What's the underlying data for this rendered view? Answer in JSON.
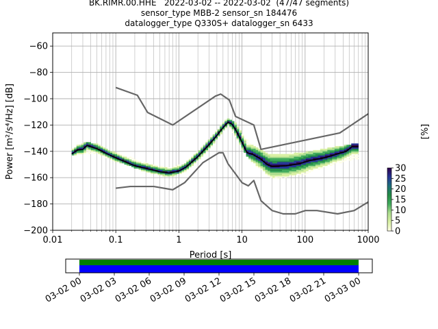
{
  "chart_data": {
    "type": "heatmap",
    "title_lines": [
      "BK.RIMR.00.HHE   2022-03-02 -- 2022-03-02  (47/47 segments)",
      "sensor_type MBB-2 sensor_sn 184476",
      "datalogger_type Q330S+ datalogger_sn 6433"
    ],
    "xlabel": "Period [s]",
    "ylabel": "Power [m²/s⁴/Hz] [dB]",
    "xscale": "log",
    "xlim": [
      0.01,
      1000
    ],
    "ylim": [
      -200,
      -50
    ],
    "x_ticks": [
      0.01,
      0.1,
      1,
      10,
      100,
      1000
    ],
    "x_tick_labels": [
      "0.01",
      "0.1",
      "1",
      "10",
      "100",
      "1000"
    ],
    "y_ticks": [
      -200,
      -180,
      -160,
      -140,
      -120,
      -100,
      -80,
      -60
    ],
    "y_tick_labels": [
      "−200",
      "−180",
      "−160",
      "−140",
      "−120",
      "−100",
      "−80",
      "−60"
    ],
    "grid": true,
    "colorbar": {
      "label": "[%]",
      "range": [
        0,
        30
      ],
      "ticks": [
        0,
        5,
        10,
        15,
        20,
        25,
        30
      ],
      "tick_labels": [
        "0",
        "5",
        "10",
        "15",
        "20",
        "25",
        "30"
      ],
      "colors": [
        "#ffffe5",
        "#d9f0a3",
        "#addd8e",
        "#41ab5d",
        "#238b45",
        "#1d6f7a",
        "#253494",
        "#2d004b"
      ]
    },
    "series": [
      {
        "name": "",
        "role": "new_high_noise_model",
        "color": "#666666",
        "points": [
          [
            0.1,
            -91.5
          ],
          [
            0.22,
            -97.4
          ],
          [
            0.32,
            -110.5
          ],
          [
            0.8,
            -120.0
          ],
          [
            3.8,
            -98.0
          ],
          [
            4.6,
            -96.5
          ],
          [
            6.3,
            -101.0
          ],
          [
            7.9,
            -113.5
          ],
          [
            15.4,
            -120.0
          ],
          [
            20.0,
            -138.5
          ],
          [
            354.8,
            -126.0
          ],
          [
            1000,
            -111.5
          ]
        ]
      },
      {
        "name": "",
        "role": "new_low_noise_model",
        "color": "#666666",
        "points": [
          [
            0.1,
            -168.0
          ],
          [
            0.17,
            -166.7
          ],
          [
            0.4,
            -166.7
          ],
          [
            0.8,
            -169.2
          ],
          [
            1.24,
            -163.7
          ],
          [
            2.4,
            -148.6
          ],
          [
            4.3,
            -141.1
          ],
          [
            5.0,
            -141.1
          ],
          [
            6.0,
            -149.4
          ],
          [
            10.0,
            -163.8
          ],
          [
            12.6,
            -166.2
          ],
          [
            15.4,
            -162.1
          ],
          [
            20.0,
            -177.5
          ],
          [
            30.0,
            -185.0
          ],
          [
            45.0,
            -187.5
          ],
          [
            70.0,
            -187.5
          ],
          [
            101.0,
            -185.0
          ],
          [
            154.0,
            -185.0
          ],
          [
            328.0,
            -187.5
          ],
          [
            600.0,
            -185.0
          ],
          [
            1000,
            -178.5
          ]
        ]
      },
      {
        "name": "",
        "role": "mode",
        "color": "#000000",
        "points": [
          [
            0.02,
            -142.0
          ],
          [
            0.025,
            -139.0
          ],
          [
            0.03,
            -138.5
          ],
          [
            0.035,
            -135.5
          ],
          [
            0.05,
            -138.0
          ],
          [
            0.07,
            -141.5
          ],
          [
            0.1,
            -145.0
          ],
          [
            0.15,
            -148.5
          ],
          [
            0.2,
            -151.0
          ],
          [
            0.3,
            -153.0
          ],
          [
            0.5,
            -155.5
          ],
          [
            0.7,
            -156.5
          ],
          [
            1.0,
            -155.0
          ],
          [
            1.3,
            -152.0
          ],
          [
            2.0,
            -144.0
          ],
          [
            3.0,
            -135.0
          ],
          [
            4.0,
            -128.0
          ],
          [
            5.0,
            -122.0
          ],
          [
            6.0,
            -118.0
          ],
          [
            7.0,
            -119.5
          ],
          [
            8.0,
            -124.0
          ],
          [
            10.0,
            -133.0
          ],
          [
            12.0,
            -141.0
          ],
          [
            15.0,
            -142.5
          ],
          [
            20.0,
            -146.0
          ],
          [
            25.0,
            -150.0
          ],
          [
            30.0,
            -151.5
          ],
          [
            50.0,
            -151.0
          ],
          [
            80.0,
            -149.5
          ],
          [
            120.0,
            -147.0
          ],
          [
            200.0,
            -145.0
          ],
          [
            300.0,
            -142.5
          ],
          [
            450.0,
            -140.0
          ],
          [
            550.0,
            -136.5
          ],
          [
            700.0,
            -136.5
          ]
        ]
      },
      {
        "name": "",
        "role": "psd_density_band",
        "upper": [
          [
            0.02,
            -139.0
          ],
          [
            0.03,
            -133.0
          ],
          [
            0.05,
            -135.0
          ],
          [
            0.1,
            -141.0
          ],
          [
            0.3,
            -149.0
          ],
          [
            0.7,
            -153.0
          ],
          [
            1.3,
            -149.0
          ],
          [
            3.0,
            -131.0
          ],
          [
            6.0,
            -115.0
          ],
          [
            8.0,
            -119.0
          ],
          [
            10.0,
            -127.0
          ],
          [
            15.0,
            -136.0
          ],
          [
            30.0,
            -143.0
          ],
          [
            100.0,
            -141.0
          ],
          [
            300.0,
            -137.0
          ],
          [
            700.0,
            -134.0
          ]
        ],
        "lower": [
          [
            0.02,
            -144.0
          ],
          [
            0.03,
            -142.0
          ],
          [
            0.05,
            -142.0
          ],
          [
            0.1,
            -148.0
          ],
          [
            0.3,
            -156.0
          ],
          [
            0.7,
            -160.0
          ],
          [
            1.3,
            -156.0
          ],
          [
            3.0,
            -139.0
          ],
          [
            6.0,
            -121.0
          ],
          [
            8.0,
            -130.0
          ],
          [
            10.0,
            -139.0
          ],
          [
            15.0,
            -150.0
          ],
          [
            30.0,
            -162.0
          ],
          [
            100.0,
            -158.0
          ],
          [
            300.0,
            -150.0
          ],
          [
            700.0,
            -146.0
          ]
        ]
      }
    ],
    "time_axis": {
      "tick_labels": [
        "03-02 00",
        "03-02 03",
        "03-02 06",
        "03-02 09",
        "03-02 12",
        "03-02 15",
        "03-02 18",
        "03-02 21",
        "03-03 00"
      ],
      "bar_colors": [
        "#008000",
        "#0000ff"
      ]
    }
  }
}
